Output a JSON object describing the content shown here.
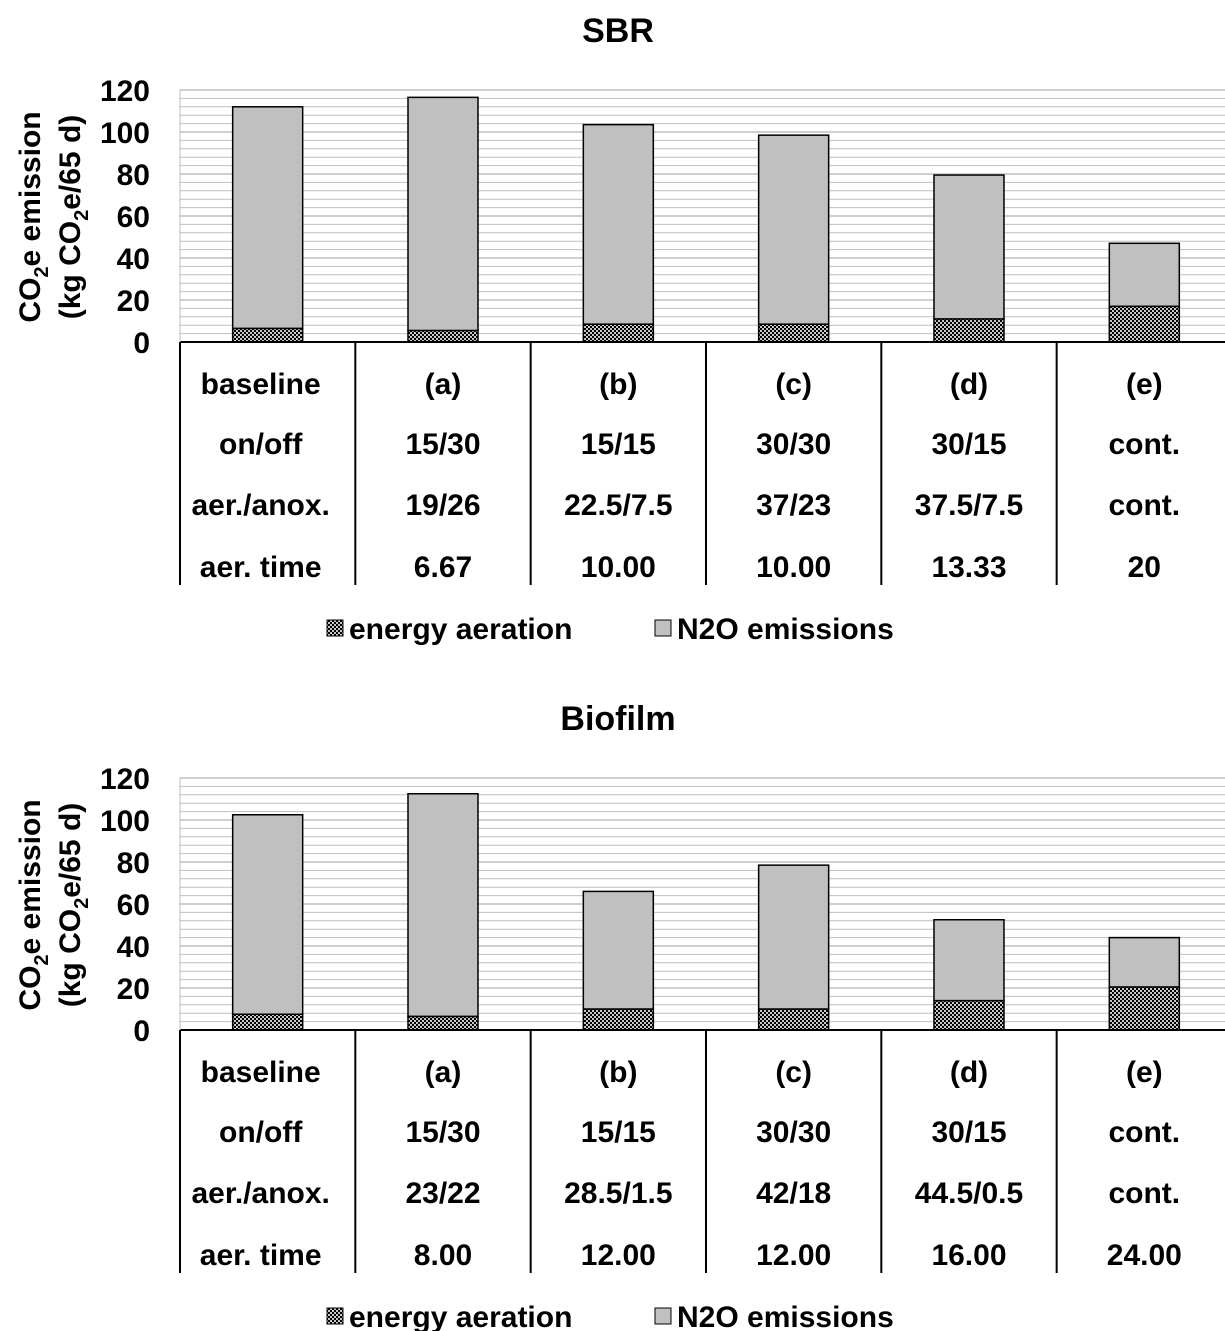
{
  "colors": {
    "n2o_fill": "#c0c0c0",
    "energy_fill": "#c8c8c8",
    "energy_dots": "#000000",
    "outline": "#000000",
    "gridline": "#bfbfbf"
  },
  "y_axis_label": {
    "line1_pre": "CO",
    "line1_sub": "2",
    "line1_post": "e emission",
    "line2_pre": "(kg CO",
    "line2_sub": "2",
    "line2_post": "e/65 d)"
  },
  "chart_data": [
    {
      "type": "bar",
      "stacked": true,
      "title": "SBR",
      "categories": [
        "baseline",
        "(a)",
        "(b)",
        "(c)",
        "(d)",
        "(e)"
      ],
      "series": [
        {
          "name": "energy aeration",
          "values": [
            6.5,
            5.5,
            8.5,
            8.5,
            11,
            17
          ]
        },
        {
          "name": "N2O emissions",
          "values": [
            105.5,
            111,
            95,
            90,
            68.5,
            30
          ]
        }
      ],
      "ylim": [
        0,
        120
      ],
      "yticks": [
        0,
        20,
        40,
        60,
        80,
        100,
        120
      ],
      "grid": true,
      "legend_position": "bottom",
      "table_rows": [
        [
          "baseline",
          "(a)",
          "(b)",
          "(c)",
          "(d)",
          "(e)"
        ],
        [
          "on/off",
          "15/30",
          "15/15",
          "30/30",
          "30/15",
          "cont."
        ],
        [
          "aer./anox.",
          "19/26",
          "22.5/7.5",
          "37/23",
          "37.5/7.5",
          "cont."
        ],
        [
          "aer. time",
          "6.67",
          "10.00",
          "10.00",
          "13.33",
          "20"
        ]
      ]
    },
    {
      "type": "bar",
      "stacked": true,
      "title": "Biofilm",
      "categories": [
        "baseline",
        "(a)",
        "(b)",
        "(c)",
        "(d)",
        "(e)"
      ],
      "series": [
        {
          "name": "energy aeration",
          "values": [
            7.5,
            6.5,
            10,
            10,
            14,
            20.5
          ]
        },
        {
          "name": "N2O emissions",
          "values": [
            95,
            106,
            56,
            68.5,
            38.5,
            23.5
          ]
        }
      ],
      "ylim": [
        0,
        120
      ],
      "yticks": [
        0,
        20,
        40,
        60,
        80,
        100,
        120
      ],
      "grid": true,
      "legend_position": "bottom",
      "table_rows": [
        [
          "baseline",
          "(a)",
          "(b)",
          "(c)",
          "(d)",
          "(e)"
        ],
        [
          "on/off",
          "15/30",
          "15/15",
          "30/30",
          "30/15",
          "cont."
        ],
        [
          "aer./anox.",
          "23/22",
          "28.5/1.5",
          "42/18",
          "44.5/0.5",
          "cont."
        ],
        [
          "aer. time",
          "8.00",
          "12.00",
          "12.00",
          "16.00",
          "24.00"
        ]
      ]
    }
  ]
}
